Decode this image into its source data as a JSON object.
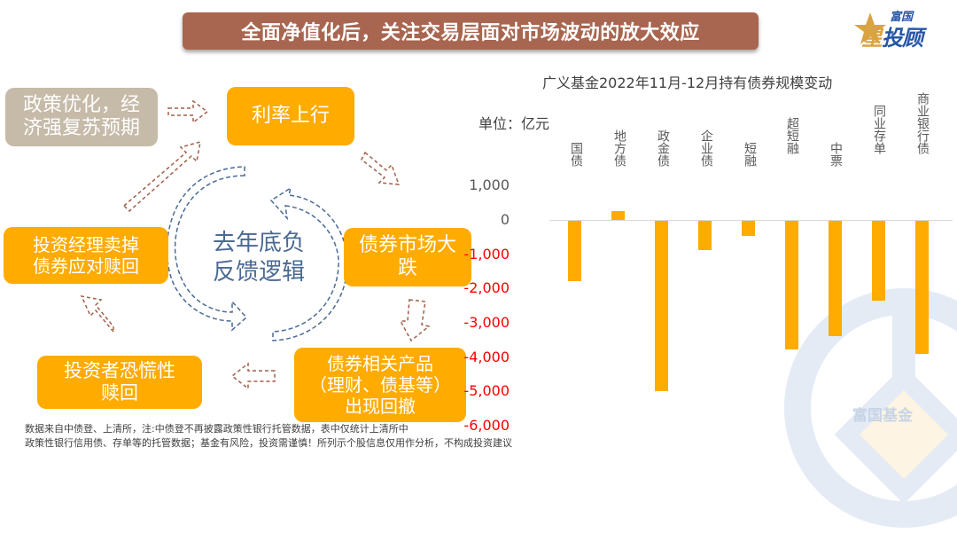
{
  "header": {
    "title": "全面净值化后，关注交易层面对市场波动的放大效应",
    "logo_small": "富国",
    "logo_big_gold": "星",
    "logo_big_blue": "投顾"
  },
  "flow": {
    "policy_box": "政策优化，经济强复苏预期",
    "policy_line1": "政策优化，经",
    "policy_line2": "济强复苏预期",
    "rate_up": "利率上行",
    "bond_crash_line1": "债券市场大",
    "bond_crash_line2": "跌",
    "products_line1": "债券相关产品",
    "products_line2": "（理财、债基等）",
    "products_line3": "出现回撤",
    "panic_line1": "投资者恐慌性",
    "panic_line2": "赎回",
    "manager_line1": "投资经理卖掉",
    "manager_line2": "债券应对赎回",
    "center_line1": "去年底负",
    "center_line2": "反馈逻辑"
  },
  "chart_data": {
    "type": "bar",
    "title": "广义基金2022年11月-12月持有债券规模变动",
    "unit_label": "单位：亿元",
    "xlabel": "",
    "ylabel": "亿元",
    "categories": [
      "国债",
      "地方债",
      "政金债",
      "企业债",
      "短融",
      "超短融",
      "中票",
      "同业存单",
      "商业银行债"
    ],
    "values": [
      -1760,
      250,
      -4950,
      -850,
      -440,
      -3740,
      -3360,
      -2320,
      -3880
    ],
    "ylim": [
      -6000,
      1000
    ],
    "yticks": [
      "1,000",
      "0",
      "-1,000",
      "-2,000",
      "-3,000",
      "-4,000",
      "-5,000",
      "-6,000"
    ],
    "bar_color": "#ffab00",
    "negative_tick_color": "#ff0000",
    "grid": false,
    "legend": "none"
  },
  "watermark": {
    "text": "富国基金"
  },
  "footer": {
    "line1": "数据来自中债登、上清所，注:中债登不再披露政策性银行托管数据，表中仅统计上清所中",
    "line2": "政策性银行信用债、存单等的托管数据；基金有风险，投资需谨慎！所列示个股信息仅用作分析，不构成投资建议"
  }
}
